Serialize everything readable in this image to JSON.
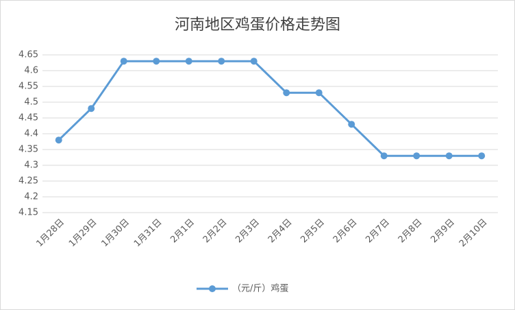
{
  "chart_data": {
    "type": "line",
    "title": "河南地区鸡蛋价格走势图",
    "categories": [
      "1月28日",
      "1月29日",
      "1月30日",
      "1月31日",
      "2月1日",
      "2月2日",
      "2月3日",
      "2月4日",
      "2月5日",
      "2月6日",
      "2月7日",
      "2月8日",
      "2月9日",
      "2月10日"
    ],
    "series": [
      {
        "name": "（元/斤）鸡蛋",
        "color": "#5b9bd5",
        "values": [
          4.38,
          4.48,
          4.63,
          4.63,
          4.63,
          4.63,
          4.63,
          4.53,
          4.53,
          4.43,
          4.33,
          4.33,
          4.33,
          4.33
        ]
      }
    ],
    "ylim": [
      4.15,
      4.65
    ],
    "yticks": [
      4.15,
      4.2,
      4.25,
      4.3,
      4.35,
      4.4,
      4.45,
      4.5,
      4.55,
      4.6,
      4.65
    ],
    "grid": true,
    "legend": "bottom"
  }
}
